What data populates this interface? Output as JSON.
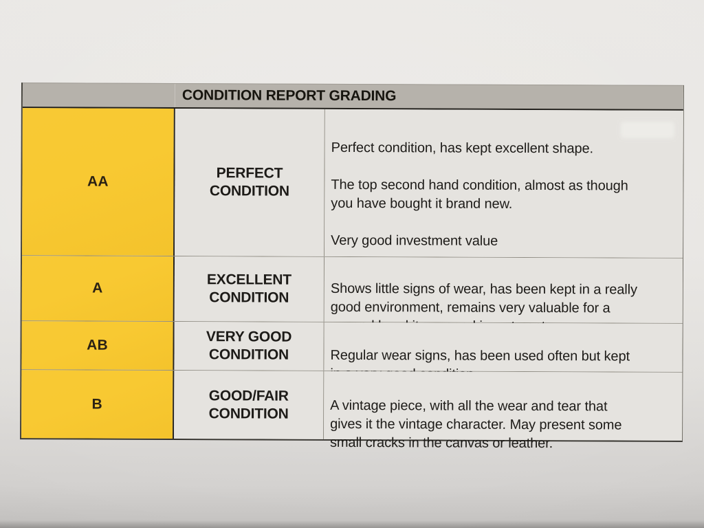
{
  "document": {
    "title": "CONDITION REPORT GRADING",
    "rows": [
      {
        "grade": "AA",
        "condition": "PERFECT\nCONDITION",
        "description_paragraphs": [
          "Perfect condition, has kept excellent shape.",
          "The top second hand condition, almost as though\nyou have bought it brand new.",
          "Very good investment value"
        ]
      },
      {
        "grade": "A",
        "condition": "EXCELLENT\nCONDITION",
        "description_paragraphs": [
          "Shows little signs of wear, has been kept in a really\ngood environment, remains very valuable for a\nsecond hand item, good investment."
        ]
      },
      {
        "grade": "AB",
        "condition": "VERY GOOD\nCONDITION",
        "description_paragraphs": [
          "Regular wear signs, has been used often but kept\nin a very good condition."
        ]
      },
      {
        "grade": "B",
        "condition": "GOOD/FAIR\nCONDITION",
        "description_paragraphs": [
          "A vintage piece, with all the wear and tear that\ngives it the vintage character. May present some\nsmall cracks in the canvas or leather."
        ]
      }
    ],
    "colors": {
      "grade_column_bg": "#f8c934",
      "header_bg": "#b6b2ab",
      "cell_bg": "#e5e3df",
      "paper_bg": "#e8e6e3",
      "text": "#1d1b18"
    }
  }
}
